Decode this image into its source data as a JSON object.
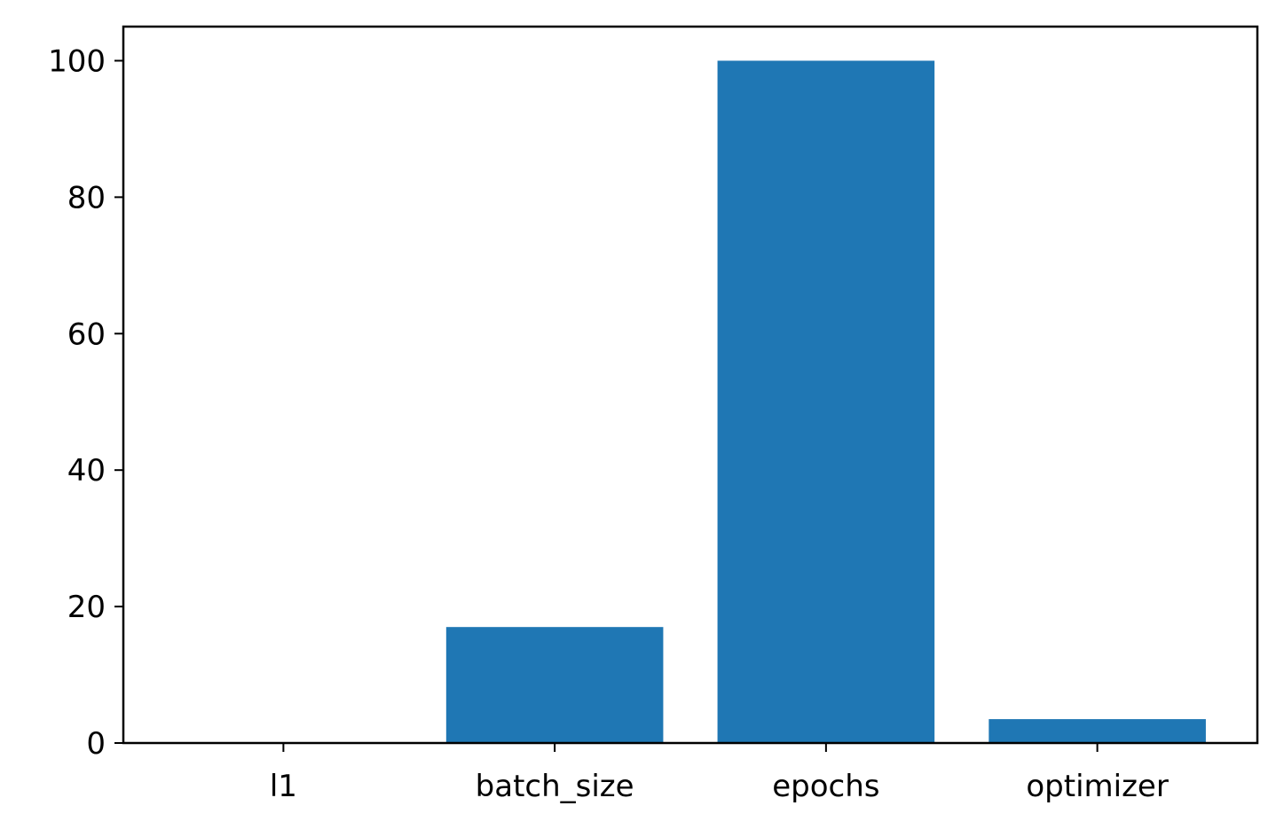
{
  "chart_data": {
    "type": "bar",
    "title": "",
    "xlabel": "",
    "ylabel": "",
    "categories": [
      "l1",
      "batch_size",
      "epochs",
      "optimizer"
    ],
    "values": [
      0.05,
      17,
      100,
      3.5
    ],
    "ylim": [
      0,
      105
    ],
    "yticks": [
      0,
      20,
      40,
      60,
      80,
      100
    ],
    "grid": false,
    "legend": "none",
    "bar_color": "#1f77b4"
  }
}
